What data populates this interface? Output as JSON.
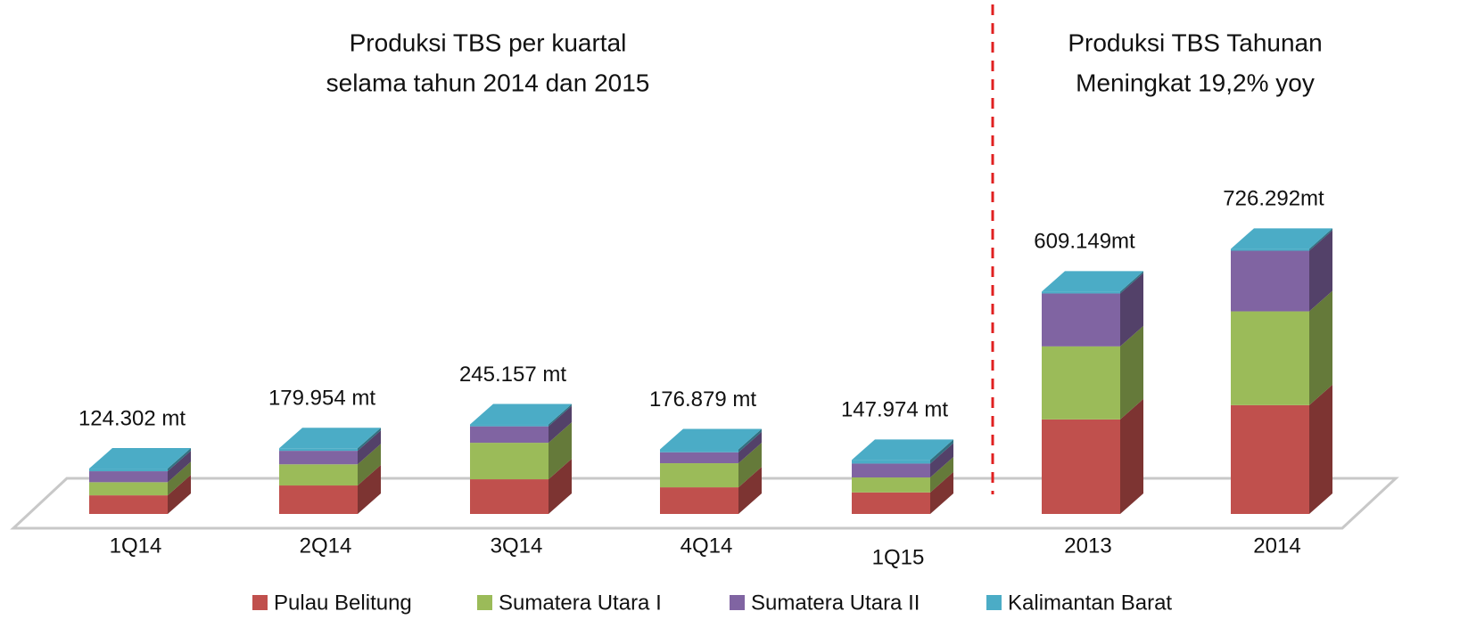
{
  "chart_data": {
    "type": "bar3d_stacked",
    "titles": [
      {
        "lines": [
          "Produksi TBS per kuartal",
          "selama tahun 2014 dan 2015"
        ]
      },
      {
        "lines": [
          "Produksi TBS Tahunan",
          "Meningkat 19,2% yoy"
        ]
      }
    ],
    "categories": [
      "1Q14",
      "2Q14",
      "3Q14",
      "4Q14",
      "1Q15",
      "2013",
      "2014"
    ],
    "total_labels": [
      "124.302 mt",
      "179.954 mt",
      "245.157 mt",
      "176.879 mt",
      "147.974 mt",
      "609.149mt",
      "726.292mt"
    ],
    "series": [
      {
        "name": "Pulau Belitung",
        "color": "#c0504d",
        "values": [
          51000,
          78000,
          95000,
          73000,
          59000,
          259000,
          298000
        ]
      },
      {
        "name": "Sumatera Utara I",
        "color": "#9bbb59",
        "values": [
          36000,
          58000,
          100000,
          66000,
          41000,
          200000,
          257000
        ]
      },
      {
        "name": "Sumatera Utara II",
        "color": "#8064a2",
        "values": [
          30000,
          37000,
          45000,
          30000,
          38000,
          145000,
          166000
        ]
      },
      {
        "name": "Kalimantan Barat",
        "color": "#4bacc6",
        "values": [
          7302,
          6954,
          5157,
          7879,
          9974,
          5149,
          5292
        ]
      }
    ],
    "divider_color": "#e02020"
  }
}
